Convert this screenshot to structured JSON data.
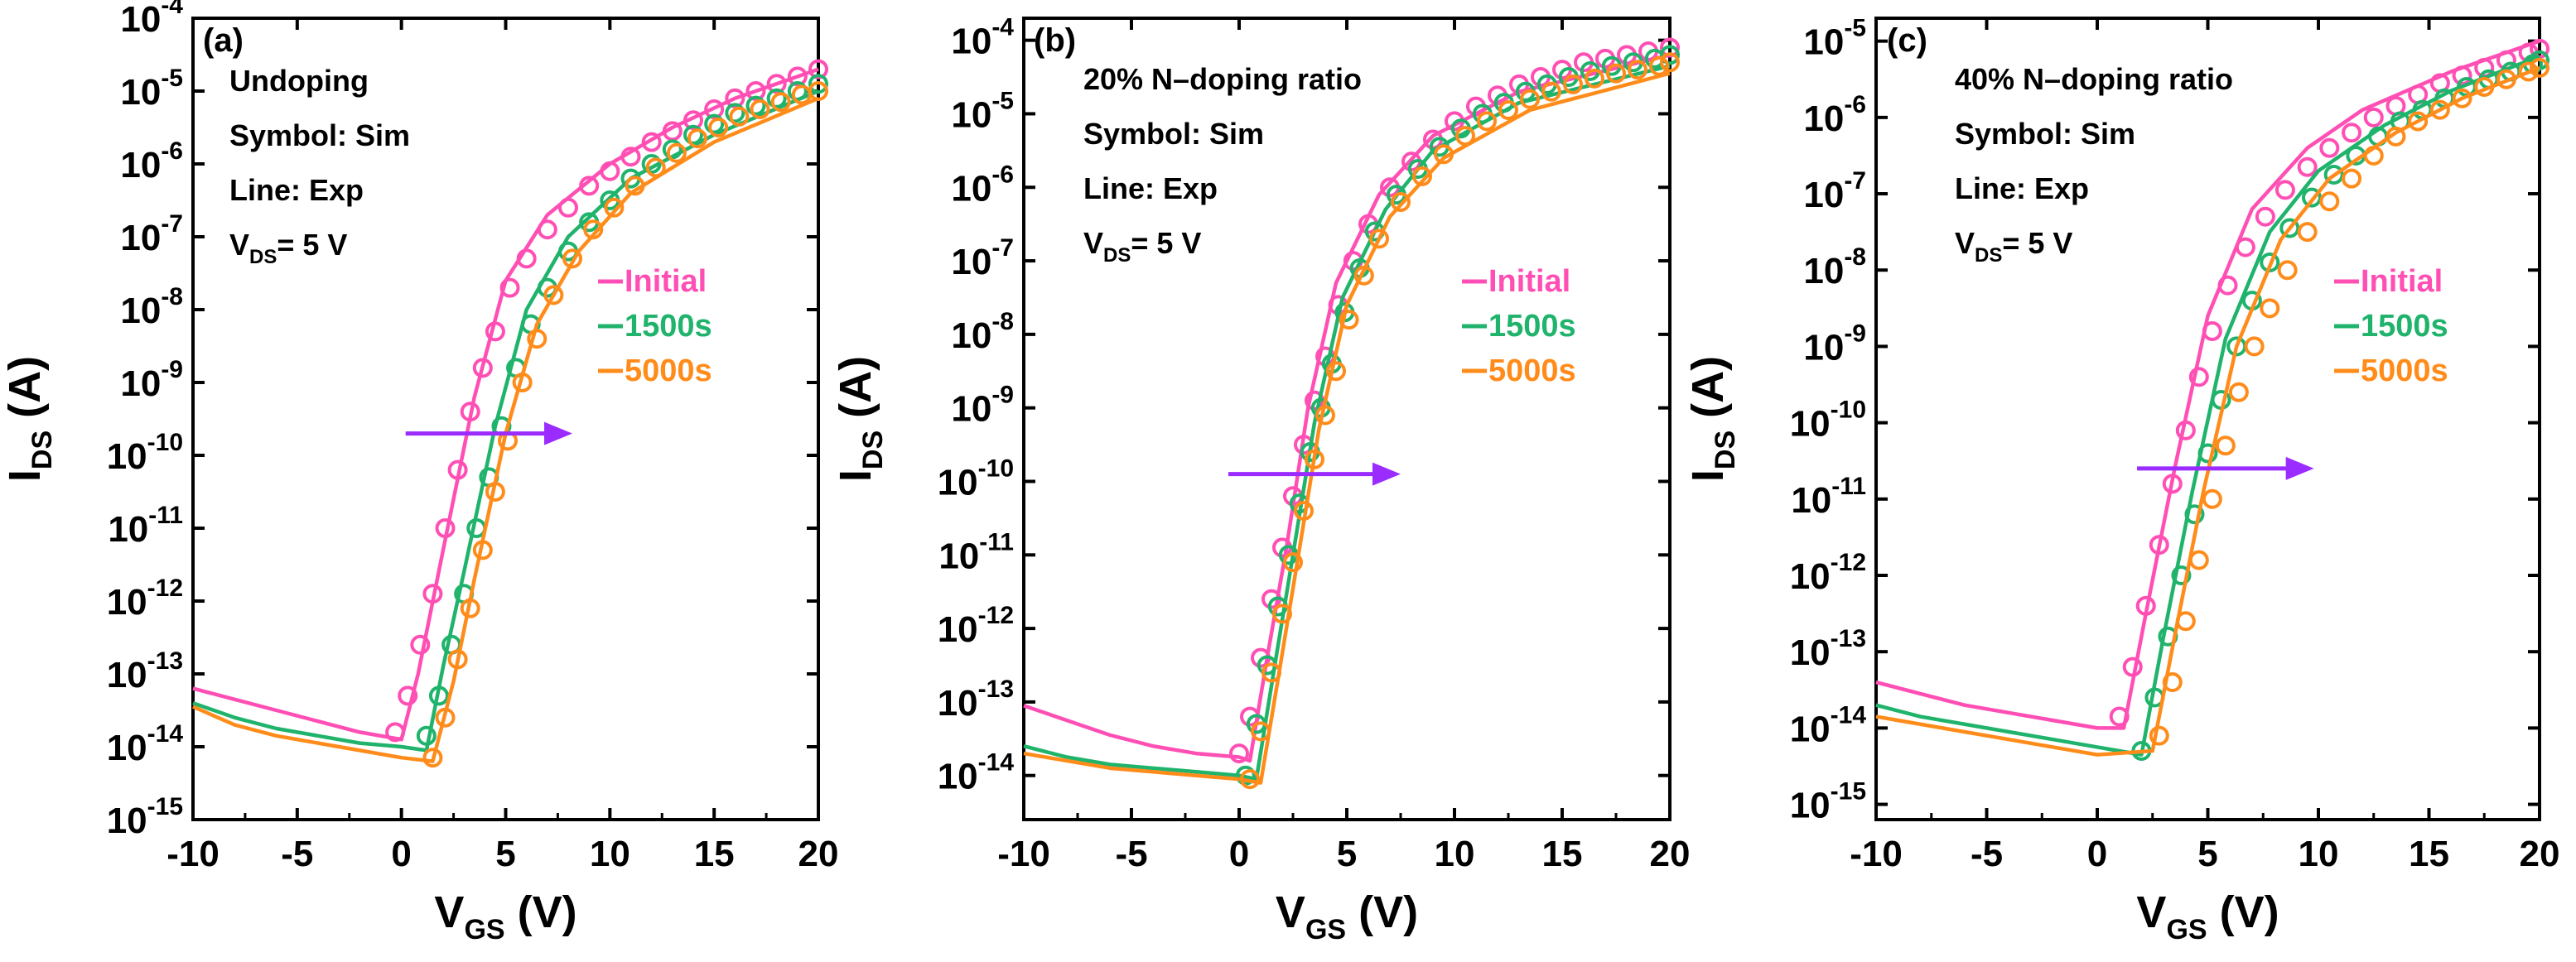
{
  "colors": {
    "initial": "#ff4fb4",
    "s1500": "#1fb36b",
    "s5000": "#ff8c1a",
    "arrow": "#9b2cff",
    "axis": "#000000"
  },
  "chart_data": [
    {
      "panel_label": "(a)",
      "type": "line",
      "xlabel_main": "V",
      "xlabel_sub": "GS",
      "xlabel_tail": " (V)",
      "ylabel_main": "I",
      "ylabel_sub": "DS",
      "ylabel_tail": " (A)",
      "xlim": [
        -10,
        20
      ],
      "ylim_exp": [
        -15,
        -4
      ],
      "xticks": [
        "-10",
        "-5",
        "0",
        "5",
        "10",
        "15",
        "20"
      ],
      "yticks_exp": [
        "-4",
        "-5",
        "-6",
        "-7",
        "-8",
        "-9",
        "-10",
        "-11",
        "-12",
        "-13",
        "-14",
        "-15"
      ],
      "annotations": [
        "Undoping",
        "Symbol: Sim",
        "Line: Exp"
      ],
      "vds_main": "V",
      "vds_sub": "DS",
      "vds_tail": "= 5 V",
      "arrow": {
        "x_from": 0.2,
        "x_to": 8.2,
        "log_y": -9.7
      },
      "legend": [
        {
          "label": "Initial",
          "color_key": "initial"
        },
        {
          "label": "1500s",
          "color_key": "s1500"
        },
        {
          "label": "5000s",
          "color_key": "s5000"
        }
      ],
      "series": [
        {
          "name": "Initial",
          "color_key": "initial",
          "line_x": [
            -10,
            -8,
            -6,
            -4,
            -2,
            0,
            0.8,
            2,
            3.5,
            5,
            7,
            10,
            13,
            16,
            20
          ],
          "line_logy": [
            -13.2,
            -13.35,
            -13.5,
            -13.65,
            -13.8,
            -13.9,
            -13.0,
            -11.3,
            -9.2,
            -7.6,
            -6.7,
            -6.0,
            -5.5,
            -5.1,
            -4.7
          ],
          "sym_x": [
            -0.3,
            0.3,
            0.9,
            1.5,
            2.1,
            2.7,
            3.3,
            3.9,
            4.5,
            5.2,
            6.0,
            7.0,
            8.0,
            9.0,
            10.0,
            11.0,
            12.0,
            13.0,
            14.0,
            15.0,
            16.0,
            17.0,
            18.0,
            19.0,
            20.0
          ],
          "sym_logy": [
            -13.8,
            -13.3,
            -12.6,
            -11.9,
            -11.0,
            -10.2,
            -9.4,
            -8.8,
            -8.3,
            -7.7,
            -7.3,
            -6.9,
            -6.6,
            -6.3,
            -6.1,
            -5.9,
            -5.7,
            -5.55,
            -5.4,
            -5.25,
            -5.1,
            -5.0,
            -4.9,
            -4.8,
            -4.7
          ]
        },
        {
          "name": "1500s",
          "color_key": "s1500",
          "line_x": [
            -10,
            -8,
            -6,
            -4,
            -2,
            0,
            1.2,
            2,
            3,
            4.5,
            6,
            8,
            11,
            15,
            20
          ],
          "line_logy": [
            -13.4,
            -13.6,
            -13.75,
            -13.85,
            -13.95,
            -14.0,
            -14.05,
            -12.9,
            -11.6,
            -9.6,
            -8.0,
            -7.0,
            -6.2,
            -5.6,
            -5.0
          ],
          "sym_x": [
            1.2,
            1.8,
            2.4,
            3.0,
            3.6,
            4.2,
            4.8,
            5.5,
            6.2,
            7.0,
            8.0,
            9.0,
            10.0,
            11.0,
            12.0,
            13.0,
            14.0,
            15.0,
            16.0,
            17.0,
            18.0,
            19.0,
            20.0
          ],
          "sym_logy": [
            -13.85,
            -13.3,
            -12.6,
            -11.9,
            -11.0,
            -10.3,
            -9.6,
            -8.8,
            -8.2,
            -7.7,
            -7.2,
            -6.8,
            -6.5,
            -6.2,
            -6.0,
            -5.8,
            -5.6,
            -5.45,
            -5.3,
            -5.2,
            -5.1,
            -5.0,
            -4.9
          ]
        },
        {
          "name": "5000s",
          "color_key": "s5000",
          "line_x": [
            -10,
            -8,
            -6,
            -4,
            -2,
            0,
            1.5,
            2.5,
            3.5,
            5,
            6.5,
            8.5,
            11,
            15,
            20
          ],
          "line_logy": [
            -13.45,
            -13.7,
            -13.85,
            -13.95,
            -14.05,
            -14.15,
            -14.2,
            -13.1,
            -11.7,
            -9.7,
            -8.2,
            -7.2,
            -6.4,
            -5.7,
            -5.1
          ],
          "sym_x": [
            1.5,
            2.1,
            2.7,
            3.3,
            3.9,
            4.5,
            5.1,
            5.8,
            6.5,
            7.3,
            8.2,
            9.2,
            10.2,
            11.2,
            12.2,
            13.2,
            14.2,
            15.2,
            16.2,
            17.2,
            18.2,
            19.2,
            20.0
          ],
          "sym_logy": [
            -14.15,
            -13.6,
            -12.8,
            -12.1,
            -11.3,
            -10.5,
            -9.8,
            -9.0,
            -8.4,
            -7.8,
            -7.3,
            -6.9,
            -6.6,
            -6.3,
            -6.05,
            -5.85,
            -5.65,
            -5.5,
            -5.35,
            -5.25,
            -5.15,
            -5.05,
            -5.0
          ]
        }
      ]
    },
    {
      "panel_label": "(b)",
      "type": "line",
      "xlabel_main": "V",
      "xlabel_sub": "GS",
      "xlabel_tail": " (V)",
      "ylabel_main": "I",
      "ylabel_sub": "DS",
      "ylabel_tail": " (A)",
      "xlim": [
        -10,
        20
      ],
      "ylim_exp": [
        -14.6,
        -3.7
      ],
      "xticks": [
        "-10",
        "-5",
        "0",
        "5",
        "10",
        "15",
        "20"
      ],
      "yticks_exp": [
        "-4",
        "-5",
        "-6",
        "-7",
        "-8",
        "-9",
        "-10",
        "-11",
        "-12",
        "-13",
        "-14"
      ],
      "annotations": [
        "20% N–doping ratio",
        "Symbol: Sim",
        "Line: Exp"
      ],
      "vds_main": "V",
      "vds_sub": "DS",
      "vds_tail": "= 5 V",
      "arrow": {
        "x_from": -0.5,
        "x_to": 7.5,
        "log_y": -9.9
      },
      "legend": [
        {
          "label": "Initial",
          "color_key": "initial"
        },
        {
          "label": "1500s",
          "color_key": "s1500"
        },
        {
          "label": "5000s",
          "color_key": "s5000"
        }
      ],
      "series": [
        {
          "name": "Initial",
          "color_key": "initial",
          "line_x": [
            -10,
            -8,
            -6,
            -4,
            -2,
            0,
            0.5,
            1.3,
            2.2,
            3.2,
            4.5,
            6.5,
            9,
            13,
            20
          ],
          "line_logy": [
            -13.05,
            -13.25,
            -13.45,
            -13.6,
            -13.7,
            -13.75,
            -13.8,
            -12.4,
            -10.9,
            -9.0,
            -7.3,
            -6.1,
            -5.3,
            -4.7,
            -4.2
          ],
          "sym_x": [
            0.0,
            0.5,
            1.0,
            1.5,
            2.0,
            2.5,
            3.0,
            3.5,
            4.0,
            4.6,
            5.3,
            6.0,
            7.0,
            8.0,
            9.0,
            10.0,
            11.0,
            12.0,
            13.0,
            14.0,
            15.0,
            16.0,
            17.0,
            18.0,
            19.0,
            20.0
          ],
          "sym_logy": [
            -13.7,
            -13.2,
            -12.4,
            -11.6,
            -10.9,
            -10.2,
            -9.5,
            -8.9,
            -8.3,
            -7.6,
            -7.0,
            -6.5,
            -6.0,
            -5.65,
            -5.35,
            -5.1,
            -4.9,
            -4.75,
            -4.6,
            -4.5,
            -4.4,
            -4.3,
            -4.25,
            -4.2,
            -4.15,
            -4.1
          ]
        },
        {
          "name": "1500s",
          "color_key": "s1500",
          "line_x": [
            -10,
            -8,
            -6,
            -4,
            -2,
            0,
            0.8,
            1.6,
            2.5,
            3.5,
            4.8,
            6.8,
            9,
            13,
            20
          ],
          "line_logy": [
            -13.6,
            -13.75,
            -13.85,
            -13.9,
            -13.95,
            -14.0,
            -14.05,
            -12.6,
            -11.0,
            -9.2,
            -7.5,
            -6.3,
            -5.5,
            -4.85,
            -4.35
          ],
          "sym_x": [
            0.3,
            0.8,
            1.3,
            1.8,
            2.3,
            2.8,
            3.3,
            3.8,
            4.3,
            4.9,
            5.6,
            6.3,
            7.3,
            8.3,
            9.3,
            10.3,
            11.3,
            12.3,
            13.3,
            14.3,
            15.3,
            16.3,
            17.3,
            18.3,
            19.3,
            20.0
          ],
          "sym_logy": [
            -14.0,
            -13.3,
            -12.5,
            -11.7,
            -11.0,
            -10.3,
            -9.6,
            -9.0,
            -8.4,
            -7.7,
            -7.1,
            -6.6,
            -6.1,
            -5.75,
            -5.45,
            -5.2,
            -5.0,
            -4.85,
            -4.7,
            -4.6,
            -4.5,
            -4.42,
            -4.35,
            -4.3,
            -4.25,
            -4.2
          ]
        },
        {
          "name": "5000s",
          "color_key": "s5000",
          "line_x": [
            -10,
            -8,
            -6,
            -4,
            -2,
            0,
            1.0,
            1.8,
            2.7,
            3.7,
            5.0,
            7.0,
            9.5,
            13.5,
            20
          ],
          "line_logy": [
            -13.7,
            -13.8,
            -13.9,
            -13.95,
            -14.0,
            -14.05,
            -14.1,
            -12.7,
            -11.1,
            -9.3,
            -7.6,
            -6.4,
            -5.6,
            -4.95,
            -4.45
          ],
          "sym_x": [
            0.5,
            1.0,
            1.5,
            2.0,
            2.5,
            3.0,
            3.5,
            4.0,
            4.5,
            5.1,
            5.8,
            6.5,
            7.5,
            8.5,
            9.5,
            10.5,
            11.5,
            12.5,
            13.5,
            14.5,
            15.5,
            16.5,
            17.5,
            18.5,
            19.5,
            20.0
          ],
          "sym_logy": [
            -14.05,
            -13.4,
            -12.6,
            -11.8,
            -11.1,
            -10.4,
            -9.7,
            -9.1,
            -8.5,
            -7.8,
            -7.2,
            -6.7,
            -6.2,
            -5.85,
            -5.55,
            -5.3,
            -5.1,
            -4.95,
            -4.8,
            -4.7,
            -4.6,
            -4.52,
            -4.45,
            -4.4,
            -4.35,
            -4.3
          ]
        }
      ]
    },
    {
      "panel_label": "(c)",
      "type": "line",
      "xlabel_main": "V",
      "xlabel_sub": "GS",
      "xlabel_tail": " (V)",
      "ylabel_main": "I",
      "ylabel_sub": "DS",
      "ylabel_tail": " (A)",
      "xlim": [
        -10,
        20
      ],
      "ylim_exp": [
        -15.2,
        -4.7
      ],
      "xticks": [
        "-10",
        "-5",
        "0",
        "5",
        "10",
        "15",
        "20"
      ],
      "yticks_exp": [
        "-5",
        "-6",
        "-7",
        "-8",
        "-9",
        "-10",
        "-11",
        "-12",
        "-13",
        "-14",
        "-15"
      ],
      "annotations": [
        "40% N–doping ratio",
        "Symbol: Sim",
        "Line: Exp"
      ],
      "vds_main": "V",
      "vds_sub": "DS",
      "vds_tail": "= 5 V",
      "arrow": {
        "x_from": 1.8,
        "x_to": 9.8,
        "log_y": -10.6
      },
      "legend": [
        {
          "label": "Initial",
          "color_key": "initial"
        },
        {
          "label": "1500s",
          "color_key": "s1500"
        },
        {
          "label": "5000s",
          "color_key": "s5000"
        }
      ],
      "series": [
        {
          "name": "Initial",
          "color_key": "initial",
          "line_x": [
            -10,
            -8,
            -6,
            -4,
            -2,
            0,
            1.2,
            2.2,
            3.5,
            5,
            7,
            9.5,
            12,
            16,
            20
          ],
          "line_logy": [
            -13.4,
            -13.55,
            -13.7,
            -13.8,
            -13.9,
            -14.0,
            -14.0,
            -12.5,
            -10.6,
            -8.6,
            -7.2,
            -6.4,
            -5.9,
            -5.4,
            -5.0
          ],
          "sym_x": [
            1.0,
            1.6,
            2.2,
            2.8,
            3.4,
            4.0,
            4.6,
            5.2,
            5.9,
            6.7,
            7.6,
            8.5,
            9.5,
            10.5,
            11.5,
            12.5,
            13.5,
            14.5,
            15.5,
            16.5,
            17.5,
            18.5,
            19.5,
            20.0
          ],
          "sym_logy": [
            -13.85,
            -13.2,
            -12.4,
            -11.6,
            -10.8,
            -10.1,
            -9.4,
            -8.8,
            -8.2,
            -7.7,
            -7.3,
            -6.95,
            -6.65,
            -6.4,
            -6.2,
            -6.0,
            -5.85,
            -5.7,
            -5.55,
            -5.45,
            -5.35,
            -5.25,
            -5.15,
            -5.1
          ]
        },
        {
          "name": "1500s",
          "color_key": "s1500",
          "line_x": [
            -10,
            -8,
            -6,
            -4,
            -2,
            0,
            2.0,
            3.0,
            4.3,
            5.8,
            7.8,
            10,
            13,
            16,
            20
          ],
          "line_logy": [
            -13.7,
            -13.85,
            -13.95,
            -14.05,
            -14.15,
            -14.25,
            -14.35,
            -12.8,
            -10.9,
            -8.9,
            -7.5,
            -6.7,
            -6.1,
            -5.65,
            -5.2
          ],
          "sym_x": [
            2.0,
            2.6,
            3.2,
            3.8,
            4.4,
            5.0,
            5.6,
            6.3,
            7.0,
            7.8,
            8.7,
            9.7,
            10.7,
            11.7,
            12.7,
            13.7,
            14.7,
            15.7,
            16.7,
            17.7,
            18.7,
            19.7,
            20.0
          ],
          "sym_logy": [
            -14.3,
            -13.6,
            -12.8,
            -12.0,
            -11.2,
            -10.4,
            -9.7,
            -9.0,
            -8.4,
            -7.9,
            -7.45,
            -7.05,
            -6.75,
            -6.5,
            -6.25,
            -6.05,
            -5.9,
            -5.75,
            -5.6,
            -5.5,
            -5.4,
            -5.3,
            -5.25
          ]
        },
        {
          "name": "5000s",
          "color_key": "s5000",
          "line_x": [
            -10,
            -8,
            -6,
            -4,
            -2,
            0,
            2.5,
            3.5,
            4.8,
            6.3,
            8.3,
            10.5,
            13.5,
            16.5,
            20
          ],
          "line_logy": [
            -13.85,
            -13.95,
            -14.05,
            -14.15,
            -14.25,
            -14.35,
            -14.3,
            -12.8,
            -10.9,
            -9.0,
            -7.6,
            -6.8,
            -6.2,
            -5.75,
            -5.35
          ],
          "sym_x": [
            2.8,
            3.4,
            4.0,
            4.6,
            5.2,
            5.8,
            6.4,
            7.1,
            7.8,
            8.6,
            9.5,
            10.5,
            11.5,
            12.5,
            13.5,
            14.5,
            15.5,
            16.5,
            17.5,
            18.5,
            19.5,
            20.0
          ],
          "sym_logy": [
            -14.1,
            -13.4,
            -12.6,
            -11.8,
            -11.0,
            -10.3,
            -9.6,
            -9.0,
            -8.5,
            -8.0,
            -7.5,
            -7.1,
            -6.8,
            -6.5,
            -6.25,
            -6.05,
            -5.9,
            -5.75,
            -5.6,
            -5.5,
            -5.4,
            -5.35
          ]
        }
      ]
    }
  ]
}
